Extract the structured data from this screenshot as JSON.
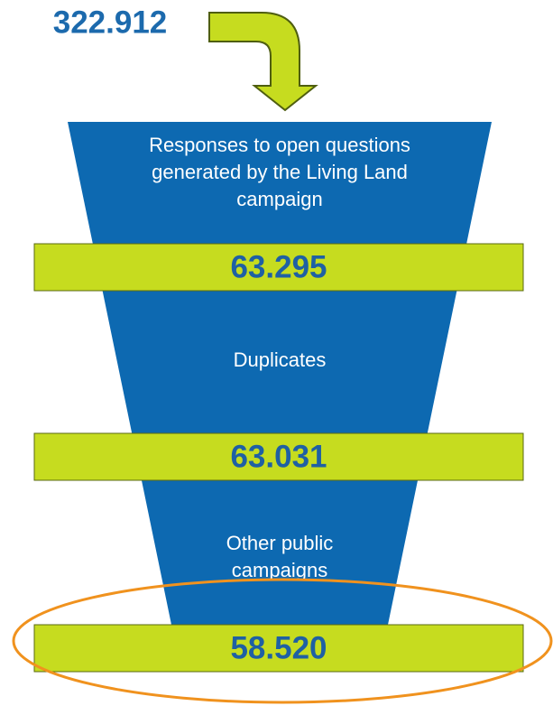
{
  "top_value": "322.912",
  "stages": [
    {
      "text": [
        "Responses to open questions",
        "generated by the Living Land",
        "campaign"
      ],
      "value": "63.295"
    },
    {
      "text": [
        "Duplicates"
      ],
      "value": "63.031"
    },
    {
      "text": [
        "Other public",
        "campaigns"
      ],
      "value": "58.520"
    }
  ]
}
